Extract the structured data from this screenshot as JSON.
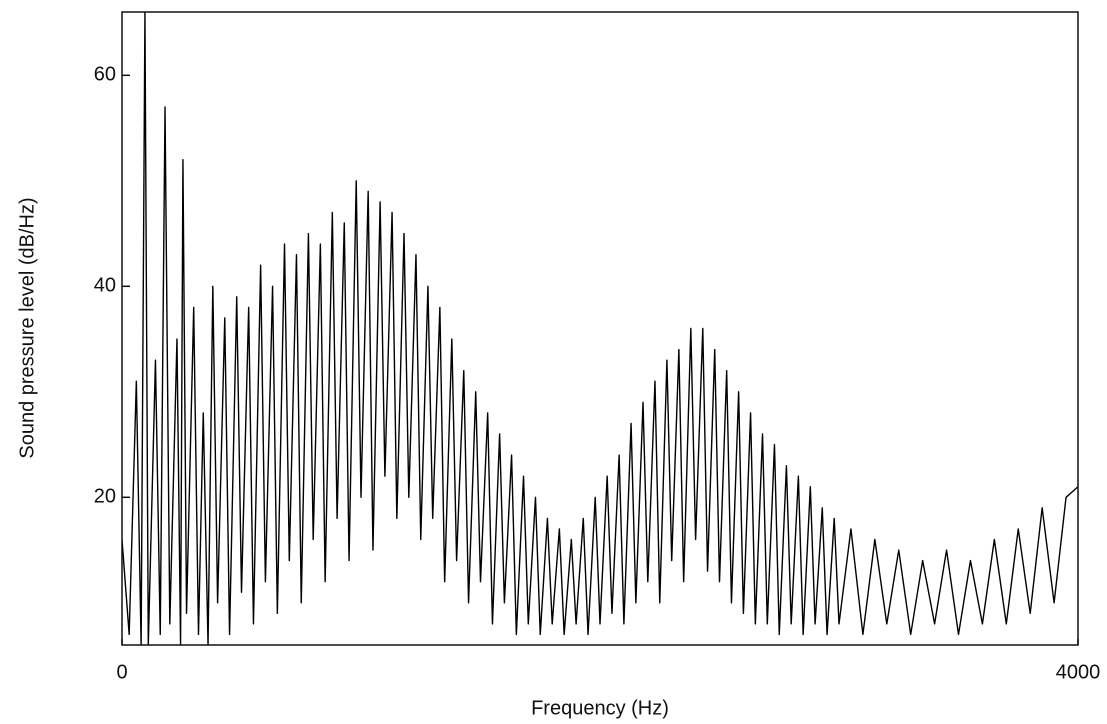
{
  "chart_data": {
    "type": "line",
    "x_label": "Frequency (Hz)",
    "y_label": "Sound pressure level (dB/Hz)",
    "color": "#000000",
    "xlim": [
      0,
      4000
    ],
    "xticks": [
      0,
      4000
    ],
    "ylim": [
      6,
      66
    ],
    "yticks": [
      20,
      40,
      60
    ],
    "x": [
      0,
      30,
      60,
      80,
      96,
      110,
      140,
      160,
      180,
      200,
      230,
      245,
      255,
      270,
      300,
      320,
      340,
      360,
      380,
      400,
      430,
      450,
      480,
      500,
      530,
      550,
      580,
      600,
      630,
      650,
      680,
      700,
      730,
      750,
      780,
      800,
      830,
      850,
      880,
      900,
      930,
      950,
      980,
      1000,
      1030,
      1050,
      1080,
      1100,
      1130,
      1150,
      1180,
      1200,
      1230,
      1250,
      1280,
      1300,
      1330,
      1350,
      1380,
      1400,
      1430,
      1450,
      1480,
      1500,
      1530,
      1550,
      1580,
      1600,
      1630,
      1650,
      1680,
      1700,
      1730,
      1750,
      1780,
      1800,
      1830,
      1850,
      1880,
      1900,
      1930,
      1950,
      1980,
      2000,
      2030,
      2050,
      2080,
      2100,
      2130,
      2150,
      2180,
      2200,
      2230,
      2250,
      2280,
      2300,
      2330,
      2350,
      2380,
      2400,
      2430,
      2450,
      2480,
      2500,
      2530,
      2550,
      2580,
      2600,
      2630,
      2650,
      2680,
      2700,
      2730,
      2750,
      2780,
      2800,
      2830,
      2850,
      2880,
      2900,
      2930,
      2950,
      2980,
      3000,
      3050,
      3100,
      3150,
      3200,
      3250,
      3300,
      3350,
      3400,
      3450,
      3500,
      3550,
      3600,
      3650,
      3700,
      3750,
      3800,
      3850,
      3900,
      3950,
      4000
    ],
    "values": [
      16,
      7,
      31,
      6,
      66,
      6,
      33,
      7,
      57,
      8,
      35,
      6,
      52,
      9,
      38,
      7,
      28,
      6,
      40,
      10,
      37,
      7,
      39,
      11,
      38,
      8,
      42,
      12,
      40,
      9,
      44,
      14,
      43,
      10,
      45,
      16,
      44,
      12,
      47,
      18,
      46,
      14,
      50,
      20,
      49,
      15,
      48,
      22,
      47,
      18,
      45,
      20,
      43,
      16,
      40,
      18,
      38,
      12,
      35,
      14,
      32,
      10,
      30,
      12,
      28,
      8,
      26,
      10,
      24,
      7,
      22,
      8,
      20,
      7,
      18,
      8,
      17,
      7,
      16,
      8,
      18,
      7,
      20,
      8,
      22,
      9,
      24,
      8,
      27,
      10,
      29,
      12,
      31,
      10,
      33,
      14,
      34,
      12,
      36,
      16,
      36,
      13,
      34,
      12,
      32,
      10,
      30,
      9,
      28,
      8,
      26,
      8,
      25,
      7,
      23,
      8,
      22,
      7,
      21,
      8,
      19,
      7,
      18,
      8,
      17,
      7,
      16,
      8,
      15,
      7,
      14,
      8,
      15,
      7,
      14,
      8,
      16,
      8,
      17,
      9,
      19,
      10,
      20,
      21
    ]
  }
}
